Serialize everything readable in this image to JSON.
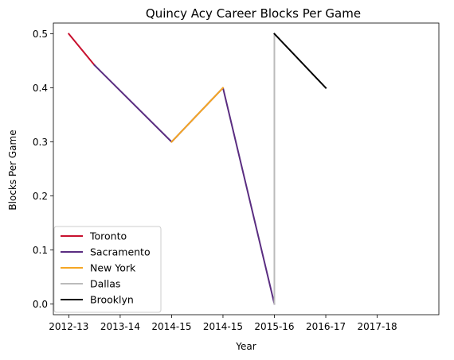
{
  "chart_data": {
    "type": "line",
    "title": "Quincy Acy Career Blocks Per Game",
    "xlabel": "Year",
    "ylabel": "Blocks Per Game",
    "x_ticks": [
      "2012-13",
      "2013-14",
      "2014-15",
      "2014-15",
      "2015-16",
      "2016-17",
      "2017-18"
    ],
    "xlim": [
      -0.3,
      7.2
    ],
    "y_ticks": [
      0.0,
      0.1,
      0.2,
      0.3,
      0.4,
      0.5
    ],
    "ylim": [
      -0.02,
      0.52
    ],
    "grid": false,
    "legend_position": "lower-left",
    "series": [
      {
        "name": "Toronto",
        "color": "#C8102E",
        "x": [
          0,
          0.5
        ],
        "y": [
          0.5,
          0.442
        ]
      },
      {
        "name": "Sacramento",
        "color": "#5A2D81",
        "x": [
          0.5,
          2,
          3,
          4
        ],
        "y": [
          0.442,
          0.3,
          0.4,
          0.0
        ]
      },
      {
        "name": "New York",
        "color": "#F5A623",
        "x": [
          2,
          3
        ],
        "y": [
          0.3,
          0.4
        ]
      },
      {
        "name": "Dallas",
        "color": "#BBBBBB",
        "x": [
          4,
          4
        ],
        "y": [
          0.0,
          0.5
        ]
      },
      {
        "name": "Brooklyn",
        "color": "#000000",
        "x": [
          4,
          5
        ],
        "y": [
          0.5,
          0.4
        ]
      }
    ]
  }
}
